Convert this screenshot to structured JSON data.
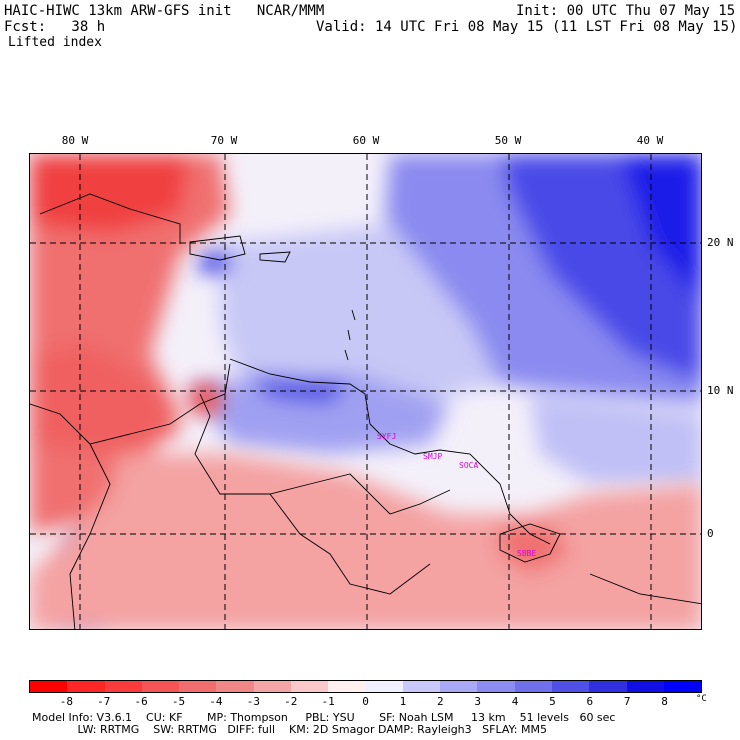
{
  "header": {
    "model_title": "HAIC-HIWC 13km ARW-GFS init   NCAR/MMM",
    "init_time": "Init: 00 UTC Thu 07 May 15",
    "forecast": "Fcst:   38 h",
    "valid_time": "Valid: 14 UTC Fri 08 May 15 (11 LST Fri 08 May 15)",
    "field_name": "Lifted index"
  },
  "map": {
    "longitude_labels": [
      "80 W",
      "70 W",
      "60 W",
      "50 W",
      "40 W"
    ],
    "latitude_labels": [
      "20 N",
      "10 N",
      "0"
    ],
    "stations": [
      "SYFJ",
      "SMJP",
      "SOCA",
      "SBBE"
    ]
  },
  "colorbar": {
    "labels": [
      "-8",
      "-7",
      "-6",
      "-5",
      "-4",
      "-3",
      "-2",
      "-1",
      "0",
      "1",
      "2",
      "3",
      "4",
      "5",
      "6",
      "7",
      "8"
    ],
    "unit": "°C",
    "colors": [
      "#ff0000",
      "#ff2626",
      "#fa3c3c",
      "#f55555",
      "#f06e6e",
      "#f08787",
      "#f5a5a5",
      "#fac8c8",
      "#fff0f0",
      "#f0f0ff",
      "#c8c8fa",
      "#a8a8f5",
      "#8c8cf0",
      "#7070eb",
      "#5050e6",
      "#3030e0",
      "#1010e6",
      "#0000ff"
    ]
  },
  "footer": {
    "line1": "Model Info: V3.6.1    CU: KF       MP: Thompson     PBL: YSU       SF: Noah LSM     13 km    51 levels   60 sec",
    "line2": "             LW: RRTMG    SW: RRTMG   DIFF: full    KM: 2D Smagor DAMP: Rayleigh3   SFLAY: MM5"
  }
}
